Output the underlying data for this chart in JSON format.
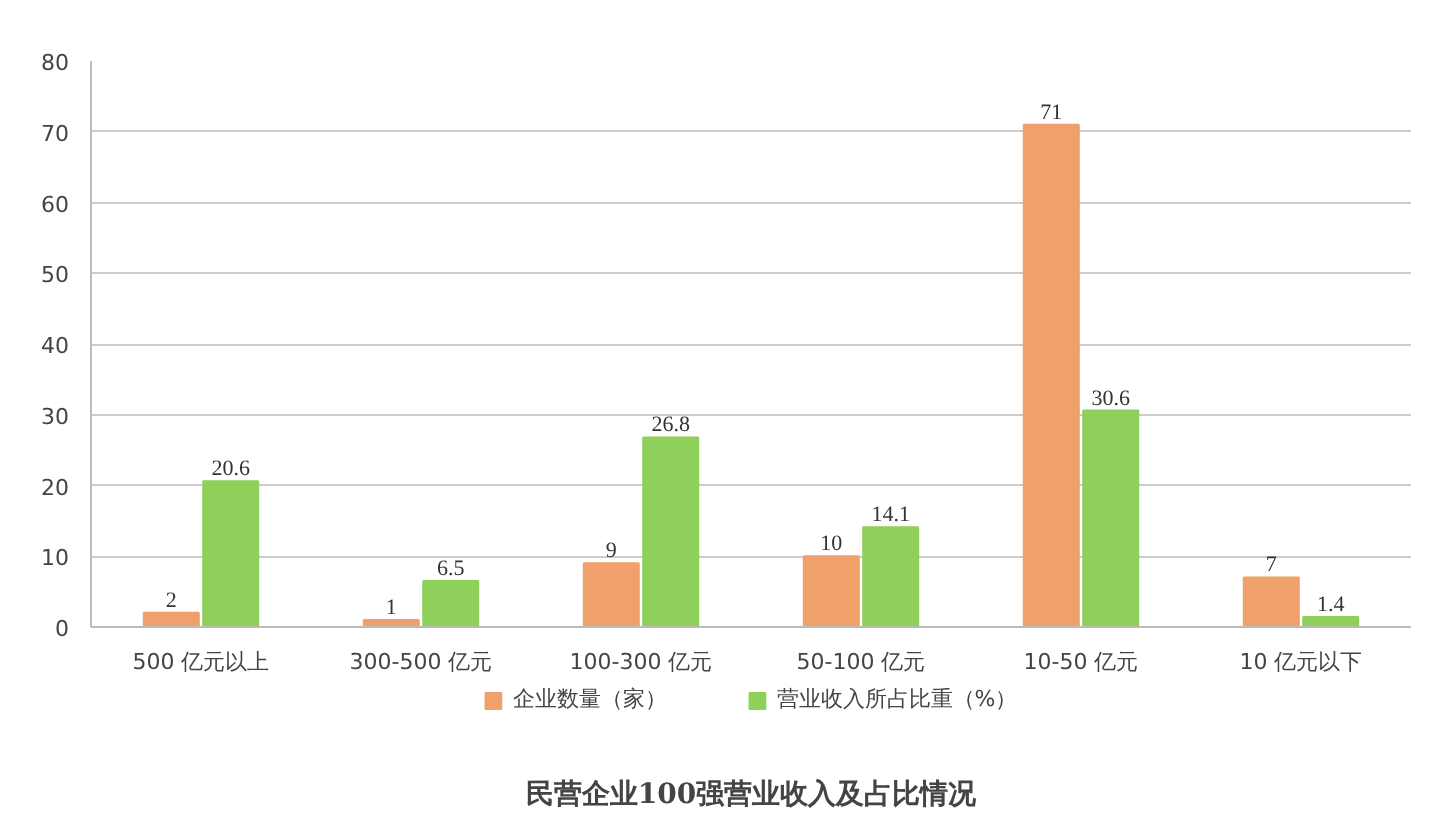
{
  "chart_data": {
    "type": "bar",
    "title": "民营企业100强营业收入及占比情况",
    "categories": [
      "500 亿元以上",
      "300-500 亿元",
      "100-300 亿元",
      "50-100 亿元",
      "10-50 亿元",
      "10 亿元以下"
    ],
    "series": [
      {
        "name": "企业数量（家）",
        "color": "#f0a06a",
        "values": [
          2,
          1,
          9,
          10,
          71,
          7
        ]
      },
      {
        "name": "营业收入所占比重（%）",
        "color": "#8fd05a",
        "values": [
          20.6,
          6.5,
          26.8,
          14.1,
          30.6,
          1.4
        ]
      }
    ],
    "ylim": [
      0,
      80
    ],
    "yticks": [
      0,
      10,
      20,
      30,
      40,
      50,
      60,
      70,
      80
    ],
    "grid": "y",
    "legend": "bottom",
    "data_labels": true
  }
}
